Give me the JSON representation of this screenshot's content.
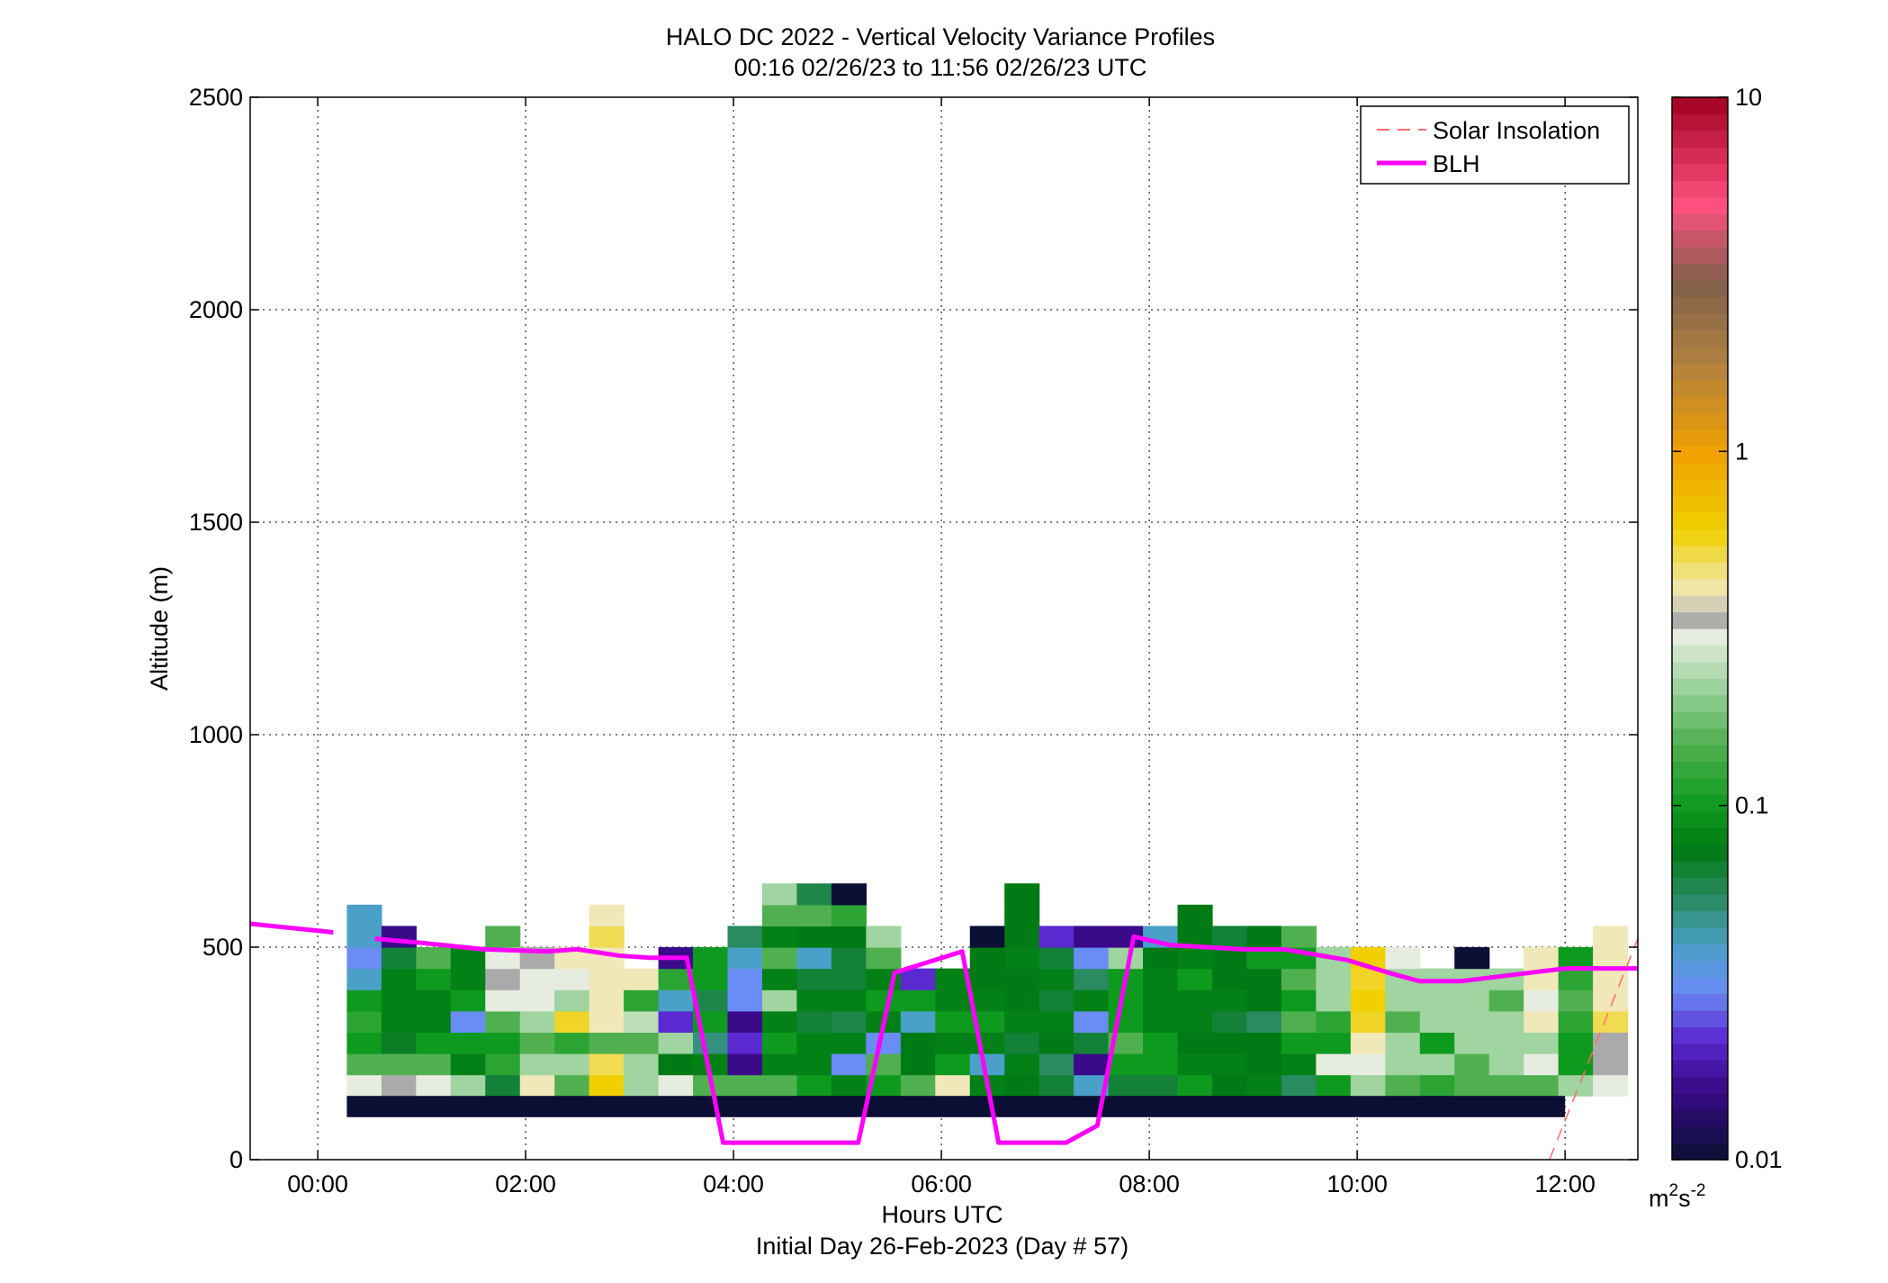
{
  "chart_data": {
    "type": "heatmap",
    "title": "HALO DC 2022 - Vertical Velocity Variance Profiles",
    "subtitle": "00:16 02/26/23 to 11:56 02/26/23  UTC",
    "xlabel": "Hours UTC",
    "xlabel2": "Initial Day 26-Feb-2023 (Day # 57)",
    "ylabel": "Altitude (m)",
    "xlim_hours": [
      -0.65,
      12.7
    ],
    "ylim": [
      0,
      2500
    ],
    "x_ticks": [
      {
        "value": 0,
        "label": "00:00"
      },
      {
        "value": 2,
        "label": "02:00"
      },
      {
        "value": 4,
        "label": "04:00"
      },
      {
        "value": 6,
        "label": "06:00"
      },
      {
        "value": 8,
        "label": "08:00"
      },
      {
        "value": 10,
        "label": "10:00"
      },
      {
        "value": 12,
        "label": "12:00"
      }
    ],
    "y_ticks": [
      {
        "value": 0,
        "label": "0"
      },
      {
        "value": 500,
        "label": "500"
      },
      {
        "value": 1000,
        "label": "1000"
      },
      {
        "value": 1500,
        "label": "1500"
      },
      {
        "value": 2000,
        "label": "2000"
      },
      {
        "value": 2500,
        "label": "2500"
      }
    ],
    "grid": true,
    "legend_position": "top-right",
    "legend": [
      {
        "label": "Solar Insolation",
        "color": "#ff6b6b",
        "style": "dashed"
      },
      {
        "label": "BLH",
        "color": "#ff00ff",
        "style": "solid"
      }
    ],
    "colorbar": {
      "scale": "log",
      "min": 0.01,
      "max": 10,
      "ticks": [
        {
          "value": 0.01,
          "label": "0.01"
        },
        {
          "value": 0.1,
          "label": "0.1"
        },
        {
          "value": 1,
          "label": "1"
        },
        {
          "value": 10,
          "label": "10"
        }
      ],
      "unit_base": "m",
      "unit_sup1": "2",
      "unit_mid": "s",
      "unit_sup2": "-2",
      "stops": [
        {
          "v": 0.01,
          "color": "#0a0f33"
        },
        {
          "v": 0.016,
          "color": "#3a0a8a"
        },
        {
          "v": 0.022,
          "color": "#5a2ad0"
        },
        {
          "v": 0.03,
          "color": "#6a8cf5"
        },
        {
          "v": 0.04,
          "color": "#4aa0c8"
        },
        {
          "v": 0.055,
          "color": "#2a8a60"
        },
        {
          "v": 0.075,
          "color": "#007a14"
        },
        {
          "v": 0.1,
          "color": "#0e9a1e"
        },
        {
          "v": 0.15,
          "color": "#50b050"
        },
        {
          "v": 0.22,
          "color": "#a0d4a0"
        },
        {
          "v": 0.3,
          "color": "#e6ece0"
        },
        {
          "v": 0.33,
          "color": "#aaaaaa"
        },
        {
          "v": 0.4,
          "color": "#f0e8b8"
        },
        {
          "v": 0.6,
          "color": "#f0d000"
        },
        {
          "v": 1.0,
          "color": "#f0a000"
        },
        {
          "v": 1.8,
          "color": "#b08040"
        },
        {
          "v": 3.0,
          "color": "#80604a"
        },
        {
          "v": 5.0,
          "color": "#ff5080"
        },
        {
          "v": 10,
          "color": "#a00020"
        }
      ]
    },
    "heatmap": {
      "x_start_hours": 0.28,
      "bin_width_hours": 0.333,
      "y_bin_size_m": 50,
      "columns": [
        {
          "bottom": 150,
          "values": [
            0.3,
            0.15,
            0.1,
            0.12,
            0.1,
            0.04,
            0.03,
            0.04,
            0.04
          ]
        },
        {
          "bottom": 150,
          "values": [
            0.33,
            0.15,
            0.07,
            0.08,
            0.08,
            0.08,
            0.065,
            0.016
          ]
        },
        {
          "bottom": 150,
          "values": [
            0.3,
            0.15,
            0.1,
            0.08,
            0.08,
            0.1,
            0.15
          ]
        },
        {
          "bottom": 150,
          "values": [
            0.22,
            0.08,
            0.1,
            0.03,
            0.1,
            0.08,
            0.08
          ]
        },
        {
          "bottom": 150,
          "values": [
            0.065,
            0.12,
            0.1,
            0.15,
            0.3,
            0.33,
            0.3,
            0.15
          ]
        },
        {
          "bottom": 150,
          "values": [
            0.4,
            0.22,
            0.15,
            0.22,
            0.3,
            0.3,
            0.33
          ]
        },
        {
          "bottom": 150,
          "values": [
            0.15,
            0.22,
            0.12,
            0.55,
            0.22,
            0.3,
            0.4
          ]
        },
        {
          "bottom": 150,
          "values": [
            0.6,
            0.5,
            0.15,
            0.4,
            0.4,
            0.4,
            0.4,
            0.5,
            0.4
          ]
        },
        {
          "bottom": 150,
          "values": [
            0.22,
            0.22,
            0.15,
            0.25,
            0.12,
            0.4
          ]
        },
        {
          "bottom": 150,
          "values": [
            0.3,
            0.075,
            0.22,
            0.022,
            0.04,
            0.12,
            0.016
          ]
        },
        {
          "bottom": 150,
          "values": [
            0.15,
            0.08,
            0.05,
            0.1,
            0.06,
            0.1,
            0.1
          ]
        },
        {
          "bottom": 150,
          "values": [
            0.15,
            0.016,
            0.022,
            0.016,
            0.03,
            0.03,
            0.04,
            0.055
          ]
        },
        {
          "bottom": 150,
          "values": [
            0.15,
            0.08,
            0.1,
            0.08,
            0.22,
            0.08,
            0.15,
            0.08,
            0.15,
            0.22
          ]
        },
        {
          "bottom": 150,
          "values": [
            0.1,
            0.08,
            0.08,
            0.065,
            0.08,
            0.065,
            0.04,
            0.075,
            0.15,
            0.06
          ]
        },
        {
          "bottom": 150,
          "values": [
            0.08,
            0.03,
            0.08,
            0.06,
            0.08,
            0.065,
            0.065,
            0.075,
            0.12,
            0.01
          ]
        },
        {
          "bottom": 150,
          "values": [
            0.1,
            0.15,
            0.03,
            0.08,
            0.1,
            0.08,
            0.15,
            0.22
          ]
        },
        {
          "bottom": 150,
          "values": [
            0.15,
            0.075,
            0.075,
            0.04,
            0.1,
            0.022
          ]
        },
        {
          "bottom": 150,
          "values": [
            0.4,
            0.1,
            0.08,
            0.1,
            0.08,
            0.08
          ]
        },
        {
          "bottom": 150,
          "values": [
            0.08,
            0.04,
            0.08,
            0.1,
            0.08,
            0.075,
            0.075,
            0.01
          ]
        },
        {
          "bottom": 150,
          "values": [
            0.075,
            0.08,
            0.065,
            0.08,
            0.075,
            0.075,
            0.08,
            0.075,
            0.075,
            0.075
          ]
        },
        {
          "bottom": 150,
          "values": [
            0.065,
            0.055,
            0.075,
            0.08,
            0.065,
            0.08,
            0.065,
            0.022
          ]
        },
        {
          "bottom": 150,
          "values": [
            0.04,
            0.016,
            0.065,
            0.03,
            0.08,
            0.055,
            0.03,
            0.016
          ]
        },
        {
          "bottom": 150,
          "values": [
            0.065,
            0.1,
            0.15,
            0.1,
            0.1,
            0.1,
            0.22,
            0.016
          ]
        },
        {
          "bottom": 150,
          "values": [
            0.065,
            0.1,
            0.1,
            0.08,
            0.08,
            0.08,
            0.075,
            0.04
          ]
        },
        {
          "bottom": 150,
          "values": [
            0.1,
            0.08,
            0.075,
            0.08,
            0.08,
            0.1,
            0.08,
            0.075,
            0.075
          ]
        },
        {
          "bottom": 150,
          "values": [
            0.075,
            0.08,
            0.075,
            0.065,
            0.08,
            0.075,
            0.075,
            0.065
          ]
        },
        {
          "bottom": 150,
          "values": [
            0.08,
            0.075,
            0.075,
            0.055,
            0.075,
            0.075,
            0.1,
            0.075
          ]
        },
        {
          "bottom": 150,
          "values": [
            0.055,
            0.08,
            0.1,
            0.15,
            0.1,
            0.15,
            0.1,
            0.15
          ]
        },
        {
          "bottom": 150,
          "values": [
            0.1,
            0.3,
            0.1,
            0.12,
            0.22,
            0.22,
            0.22
          ]
        },
        {
          "bottom": 150,
          "values": [
            0.22,
            0.3,
            0.4,
            0.55,
            0.6,
            0.55,
            0.6
          ]
        },
        {
          "bottom": 150,
          "values": [
            0.15,
            0.22,
            0.22,
            0.15,
            0.22,
            0.22,
            0.3
          ]
        },
        {
          "bottom": 150,
          "values": [
            0.12,
            0.22,
            0.1,
            0.22,
            0.22,
            0.22
          ]
        },
        {
          "bottom": 150,
          "values": [
            0.15,
            0.15,
            0.22,
            0.22,
            0.22,
            0.22,
            0.01
          ]
        },
        {
          "bottom": 150,
          "values": [
            0.15,
            0.22,
            0.22,
            0.22,
            0.15,
            0.22
          ]
        },
        {
          "bottom": 150,
          "values": [
            0.15,
            0.3,
            0.22,
            0.4,
            0.3,
            0.4,
            0.4
          ]
        },
        {
          "bottom": 150,
          "values": [
            0.22,
            0.1,
            0.1,
            0.12,
            0.15,
            0.12,
            0.1
          ]
        },
        {
          "bottom": 150,
          "values": [
            0.3,
            0.33,
            0.33,
            0.5,
            0.4,
            0.4,
            0.4,
            0.4
          ]
        }
      ],
      "bottom_band": {
        "from_m": 100,
        "to_m": 150,
        "value": 0.01,
        "x_start_hours": 0.28,
        "x_end_hours": 12.0
      }
    },
    "series": [
      {
        "name": "BLH",
        "type": "line",
        "points": [
          {
            "x": -0.65,
            "y": 555
          },
          {
            "x": 0.15,
            "y": 535
          }
        ]
      },
      {
        "name": "BLH",
        "type": "line",
        "points": [
          {
            "x": 0.55,
            "y": 520
          },
          {
            "x": 1.0,
            "y": 510
          },
          {
            "x": 1.6,
            "y": 495
          },
          {
            "x": 2.2,
            "y": 490
          },
          {
            "x": 2.5,
            "y": 495
          },
          {
            "x": 2.9,
            "y": 480
          },
          {
            "x": 3.2,
            "y": 475
          },
          {
            "x": 3.55,
            "y": 475
          },
          {
            "x": 3.9,
            "y": 40
          },
          {
            "x": 5.2,
            "y": 40
          },
          {
            "x": 5.55,
            "y": 440
          },
          {
            "x": 6.2,
            "y": 490
          },
          {
            "x": 6.55,
            "y": 40
          },
          {
            "x": 7.2,
            "y": 40
          },
          {
            "x": 7.5,
            "y": 80
          },
          {
            "x": 7.85,
            "y": 525
          },
          {
            "x": 8.2,
            "y": 505
          },
          {
            "x": 8.9,
            "y": 495
          },
          {
            "x": 9.3,
            "y": 495
          },
          {
            "x": 9.9,
            "y": 470
          },
          {
            "x": 10.3,
            "y": 440
          },
          {
            "x": 10.6,
            "y": 420
          },
          {
            "x": 11.0,
            "y": 420
          },
          {
            "x": 11.5,
            "y": 435
          },
          {
            "x": 12.0,
            "y": 450
          },
          {
            "x": 12.7,
            "y": 450
          }
        ]
      },
      {
        "name": "Solar Insolation",
        "type": "line",
        "points": [
          {
            "x": 11.85,
            "y": 0
          },
          {
            "x": 12.7,
            "y": 520
          }
        ]
      }
    ]
  }
}
